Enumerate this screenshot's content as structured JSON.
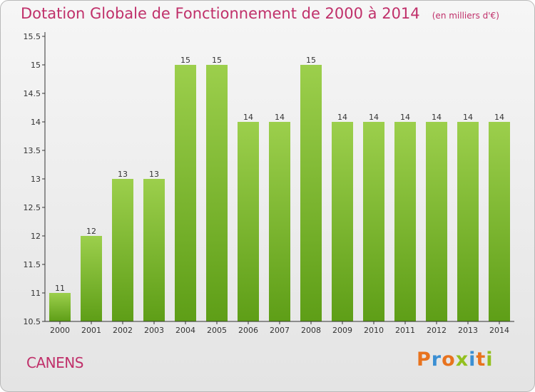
{
  "header": {
    "title": "Dotation Globale de Fonctionnement de 2000 à 2014",
    "unit": "(en milliers d'€)"
  },
  "footer": {
    "commune": "CANENS",
    "logo_text": "Proxiti",
    "logo_colors": [
      "#e8731e",
      "#3b8fd3",
      "#e8731e",
      "#93c01f",
      "#3b8fd3",
      "#e8731e",
      "#93c01f"
    ]
  },
  "colors": {
    "bar_top": "#9ccf4c",
    "bar_bottom": "#5e9e17",
    "text_accent": "#c0306a",
    "axis": "#333333"
  },
  "chart_data": {
    "type": "bar",
    "title": "Dotation Globale de Fonctionnement de 2000 à 2014",
    "xlabel": "",
    "ylabel": "",
    "categories": [
      "2000",
      "2001",
      "2002",
      "2003",
      "2004",
      "2005",
      "2006",
      "2007",
      "2008",
      "2009",
      "2010",
      "2011",
      "2012",
      "2013",
      "2014"
    ],
    "values": [
      11,
      12,
      13,
      13,
      15,
      15,
      14,
      14,
      15,
      14,
      14,
      14,
      14,
      14,
      14
    ],
    "value_labels": [
      "11",
      "12",
      "13",
      "13",
      "15",
      "15",
      "14",
      "14",
      "15",
      "14",
      "14",
      "14",
      "14",
      "14",
      "14"
    ],
    "ylim": [
      10.5,
      15.5
    ],
    "yticks": [
      10.5,
      11,
      11.5,
      12,
      12.5,
      13,
      13.5,
      14,
      14.5,
      15,
      15.5
    ],
    "ytick_labels": [
      "10.5",
      "11",
      "11.5",
      "12",
      "12.5",
      "13",
      "13.5",
      "14",
      "14.5",
      "15",
      "15.5"
    ],
    "grid": false,
    "legend": "none"
  }
}
